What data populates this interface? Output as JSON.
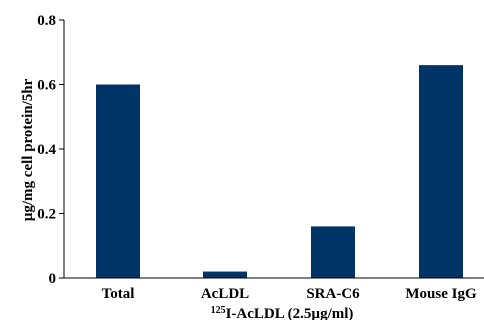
{
  "chart_data": {
    "type": "bar",
    "categories": [
      "Total",
      "AcLDL",
      "SRA-C6",
      "Mouse IgG"
    ],
    "values": [
      0.6,
      0.02,
      0.16,
      0.66
    ],
    "title": "",
    "xlabel_prefix": "125",
    "xlabel_main": "I-AcLDL (2.5µg/ml)",
    "ylabel": "µg/mg cell protein/5hr",
    "ylim": [
      0,
      0.8
    ],
    "yticks": [
      "0",
      "0.2",
      "0.4",
      "0.6",
      "0.8"
    ],
    "ytick_values": [
      0,
      0.2,
      0.4,
      0.6,
      0.8
    ],
    "bar_color": "#003366",
    "grid": false,
    "legend": "none"
  }
}
